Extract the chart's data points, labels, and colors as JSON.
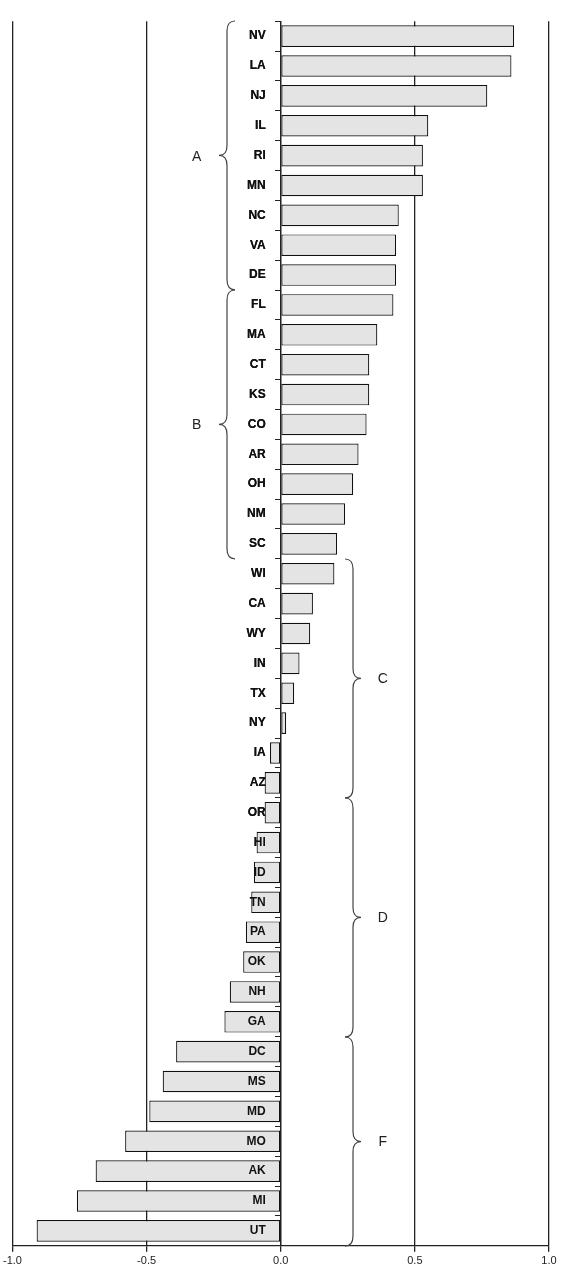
{
  "chart_data": {
    "type": "bar",
    "orientation": "horizontal",
    "categories": [
      "NV",
      "LA",
      "NJ",
      "IL",
      "RI",
      "MN",
      "NC",
      "VA",
      "DE",
      "FL",
      "MA",
      "CT",
      "KS",
      "CO",
      "AR",
      "OH",
      "NM",
      "SC",
      "WI",
      "CA",
      "WY",
      "IN",
      "TX",
      "NY",
      "IA",
      "AZ",
      "OR",
      "HI",
      "ID",
      "TN",
      "PA",
      "OK",
      "NH",
      "GA",
      "DC",
      "MS",
      "MD",
      "MO",
      "AK",
      "MI",
      "UT"
    ],
    "values": [
      0.87,
      0.86,
      0.77,
      0.55,
      0.53,
      0.53,
      0.44,
      0.43,
      0.43,
      0.42,
      0.36,
      0.33,
      0.33,
      0.32,
      0.29,
      0.27,
      0.24,
      0.21,
      0.2,
      0.12,
      0.11,
      0.07,
      0.05,
      0.02,
      -0.04,
      -0.06,
      -0.06,
      -0.09,
      -0.1,
      -0.11,
      -0.13,
      -0.14,
      -0.19,
      -0.21,
      -0.39,
      -0.44,
      -0.49,
      -0.58,
      -0.69,
      -0.76,
      -0.91
    ],
    "color": "#e4e4e4",
    "xlim": [
      -1,
      1
    ],
    "xticks": [
      {
        "value": -1,
        "label": "-1.0"
      },
      {
        "value": -0.5,
        "label": "-0.5"
      },
      {
        "value": 0,
        "label": "0.0"
      },
      {
        "value": 0.5,
        "label": "0.5"
      },
      {
        "value": 1,
        "label": "1.0"
      }
    ],
    "annotations": [
      "A",
      "B",
      "C",
      "D",
      "F"
    ],
    "grid": "x",
    "legend": false
  }
}
